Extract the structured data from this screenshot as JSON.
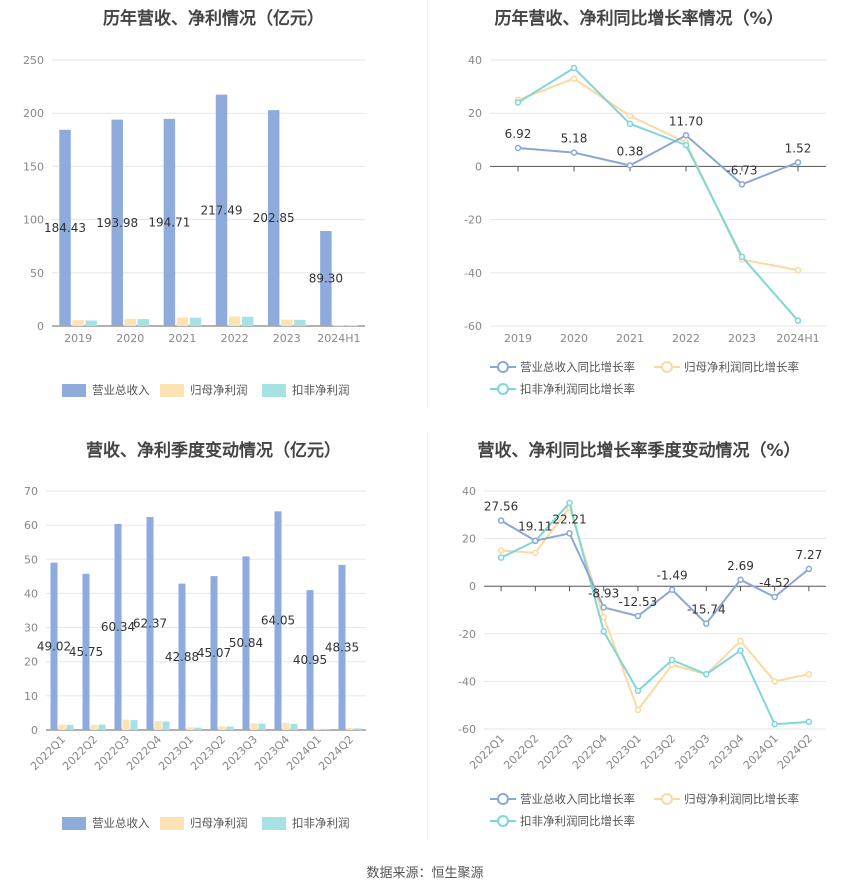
{
  "source_label": "数据来源：恒生聚源",
  "colors": {
    "revenue": "#8eabdc",
    "net_profit": "#fde3b3",
    "deducted_profit": "#a6e2e4",
    "revenue_line": "#8aa8d6",
    "net_profit_line": "#fbd9a0",
    "deducted_line": "#7fd6d8",
    "grid": "#e6e6e6",
    "axis_text": "#888888"
  },
  "chart_data": [
    {
      "id": "annual-bar",
      "type": "bar",
      "title": "历年营收、净利情况（亿元）",
      "categories": [
        "2019",
        "2020",
        "2021",
        "2022",
        "2023",
        "2024H1"
      ],
      "ylim": [
        0,
        250
      ],
      "yticks": [
        0,
        50,
        100,
        150,
        200,
        250
      ],
      "series": [
        {
          "name": "营业总收入",
          "values": [
            184.43,
            193.98,
            194.71,
            217.49,
            202.85,
            89.3
          ],
          "labels": [
            "184.43",
            "193.98",
            "194.71",
            "217.49",
            "202.85",
            "89.30"
          ]
        },
        {
          "name": "归母净利润",
          "values": [
            5.5,
            6.8,
            8.0,
            9.0,
            6.0,
            0.8
          ]
        },
        {
          "name": "扣非净利润",
          "values": [
            5.2,
            6.5,
            7.8,
            8.7,
            5.8,
            0.6
          ]
        }
      ],
      "legend": "bottom",
      "grid": true
    },
    {
      "id": "annual-line",
      "type": "line",
      "title": "历年营收、净利同比增长率情况（%）",
      "categories": [
        "2019",
        "2020",
        "2021",
        "2022",
        "2023",
        "2024H1"
      ],
      "ylim": [
        -60,
        40
      ],
      "yticks": [
        -60,
        -40,
        -20,
        0,
        20,
        40
      ],
      "series": [
        {
          "name": "营业总收入同比增长率",
          "values": [
            6.92,
            5.18,
            0.38,
            11.7,
            -6.73,
            1.52
          ],
          "labels": [
            "6.92",
            "5.18",
            "0.38",
            "11.70",
            "-6.73",
            "1.52"
          ]
        },
        {
          "name": "归母净利润同比增长率",
          "values": [
            25,
            33,
            19,
            9,
            -35,
            -39
          ]
        },
        {
          "name": "扣非净利润同比增长率",
          "values": [
            24,
            37,
            16,
            8,
            -34,
            -58
          ]
        }
      ],
      "legend": "bottom",
      "grid": true
    },
    {
      "id": "quarterly-bar",
      "type": "bar",
      "title": "营收、净利季度变动情况（亿元）",
      "categories": [
        "2022Q1",
        "2022Q2",
        "2022Q3",
        "2022Q4",
        "2023Q1",
        "2023Q2",
        "2023Q3",
        "2023Q4",
        "2024Q1",
        "2024Q2"
      ],
      "ylim": [
        0,
        70
      ],
      "yticks": [
        0,
        10,
        20,
        30,
        40,
        50,
        60,
        70
      ],
      "series": [
        {
          "name": "营业总收入",
          "values": [
            49.02,
            45.75,
            60.34,
            62.37,
            42.88,
            45.07,
            50.84,
            64.05,
            40.95,
            48.35
          ],
          "labels": [
            "49.02",
            "45.75",
            "60.34",
            "62.37",
            "42.88",
            "45.07",
            "50.84",
            "64.05",
            "40.95",
            "48.35"
          ]
        },
        {
          "name": "归母净利润",
          "values": [
            1.6,
            1.5,
            3.0,
            2.6,
            0.8,
            1.1,
            2.0,
            2.1,
            0.4,
            0.6
          ]
        },
        {
          "name": "扣非净利润",
          "values": [
            1.5,
            1.6,
            2.9,
            2.5,
            0.7,
            1.0,
            1.9,
            1.8,
            0.3,
            0.5
          ]
        }
      ],
      "legend": "bottom",
      "grid": true
    },
    {
      "id": "quarterly-line",
      "type": "line",
      "title": "营收、净利同比增长率季度变动情况（%）",
      "categories": [
        "2022Q1",
        "2022Q2",
        "2022Q3",
        "2022Q4",
        "2023Q1",
        "2023Q2",
        "2023Q3",
        "2023Q4",
        "2024Q1",
        "2024Q2"
      ],
      "ylim": [
        -60,
        40
      ],
      "yticks": [
        -60,
        -40,
        -20,
        0,
        20,
        40
      ],
      "series": [
        {
          "name": "营业总收入同比增长率",
          "values": [
            27.56,
            19.11,
            22.21,
            -8.93,
            -12.53,
            -1.49,
            -15.74,
            2.69,
            -4.52,
            7.27
          ],
          "labels": [
            "27.56",
            "19.11",
            "22.21",
            "-8.93",
            "-12.53",
            "-1.49",
            "-15.74",
            "2.69",
            "-4.52",
            "7.27"
          ]
        },
        {
          "name": "归母净利润同比增长率",
          "values": [
            15,
            14,
            33,
            -13,
            -52,
            -33,
            -37,
            -23,
            -40,
            -37
          ]
        },
        {
          "name": "扣非净利润同比增长率",
          "values": [
            12,
            19,
            35,
            -19,
            -44,
            -31,
            -37,
            -27,
            -58,
            -57
          ]
        }
      ],
      "legend": "bottom",
      "grid": true
    }
  ]
}
